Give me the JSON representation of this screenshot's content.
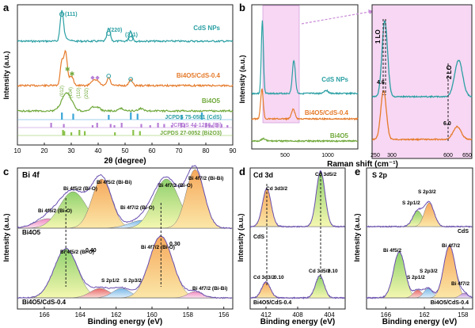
{
  "panels": {
    "a": {
      "letter": "a",
      "xlabel": "2θ (degree)",
      "ylabel": "Intensity (a.u.)",
      "xticks": [
        "10",
        "20",
        "30",
        "40",
        "50",
        "60",
        "70",
        "80",
        "90"
      ],
      "series_labels": [
        "CdS NPs",
        "Bi4O5/CdS-0.4",
        "Bi4O5"
      ],
      "refs": [
        "JCPDS 75-0581 (CdS)",
        "JCPDS 44-1246 (Bi)",
        "JCPDS 27-0052 (Bi2O3)"
      ],
      "peak_labels": [
        "(111)",
        "(220)",
        "(311)"
      ],
      "bi_labels": [
        "(012)",
        "(104)",
        "(110)",
        "(202)"
      ],
      "markers": {
        "cds": "○",
        "bi": "◆",
        "bi2o3": "✱"
      }
    },
    "b": {
      "letter": "b",
      "xlabel": "Raman shift (cm⁻¹)",
      "ylabel": "Intensity (a.u.)",
      "xticks_left": [
        "500",
        "1000"
      ],
      "xticks_right": [
        "250",
        "300",
        "600",
        "650"
      ],
      "series_labels": [
        "CdS NPs",
        "Bi4O5/CdS-0.4",
        "Bi4O5"
      ],
      "peak_labels": [
        "1 LO",
        "2 LO"
      ],
      "shift_labels": [
        "4.6",
        "6.0"
      ]
    },
    "c": {
      "letter": "c",
      "title": "Bi 4f",
      "xlabel": "Binding energy (eV)",
      "ylabel": "Intensity (a.u.)",
      "xticks": [
        "166",
        "164",
        "162",
        "160",
        "158",
        "156"
      ],
      "sample_top": "Bi4O5",
      "sample_bottom": "Bi4O5/CdS-0.4",
      "labels_top": [
        "Bi 4f5/2 (Bi-O)",
        "Bi 4f5/2 (Bi-O)",
        "Bi 4f5/2 (Bi-Bi)",
        "Bi 4f7/2 (Bi-O)",
        "Bi 4f7/2 (Bi-O)",
        "Bi 4f7/2 (Bi-Bi)"
      ],
      "labels_bottom": [
        "Bi 4f5/2 (Bi-O)",
        "S 2p1/2",
        "S 2p3/2",
        "Bi 4f7/2 (Bi-O)",
        "Bi 4f7/2 (Bi-Bi)"
      ],
      "shift_labels": [
        "0.40",
        "0.30"
      ]
    },
    "d": {
      "letter": "d",
      "title": "Cd 3d",
      "xlabel": "Binding energy (eV)",
      "ylabel": "Intensity (a.u.)",
      "xticks": [
        "412",
        "408",
        "404"
      ],
      "sample_top": "CdS",
      "sample_bottom": "Bi4O5/CdS-0.4",
      "labels": [
        "Cd 3d3/2",
        "Cd 3d5/2"
      ],
      "shift_labels": [
        "0.10",
        "0.10"
      ]
    },
    "e": {
      "letter": "e",
      "title": "S 2p",
      "xlabel": "Binding energy (eV)",
      "ylabel": "Intensity (a.u.)",
      "xticks": [
        "166",
        "162",
        "158"
      ],
      "sample_top": "CdS",
      "sample_bottom": "Bi4O5/CdS-0.4",
      "labels": [
        "S 2p1/2",
        "S 2p3/2",
        "Bi 4f5/2",
        "S 2p1/2",
        "S 2p3/2",
        "Bi 4f7/2",
        "Bi 4f7/2"
      ]
    }
  },
  "colors": {
    "cds": "#2a9fa3",
    "composite": "#e57a2a",
    "bio": "#6fa83a",
    "jcpds_cds": "#3aa6d8",
    "jcpds_bi": "#b77fd6",
    "jcpds_bi2o3": "#8ac24a",
    "highlight": "#f7d7f3",
    "highlight_edge": "#c88ad8"
  },
  "chart_data": [
    {
      "type": "line",
      "panel": "a",
      "title": "",
      "xlabel": "2θ (degree)",
      "ylabel": "Intensity (a.u.)",
      "xlim": [
        10,
        90
      ],
      "series": [
        {
          "name": "CdS NPs",
          "peaks_2theta": [
            26.5,
            43.9,
            52.1
          ]
        },
        {
          "name": "Bi4O5/CdS-0.4",
          "peaks_2theta": [
            26.5,
            27.9,
            30.0,
            38.0,
            39.8,
            43.9,
            52.1
          ]
        },
        {
          "name": "Bi4O5",
          "peaks_2theta": [
            27.2,
            28.5,
            30.2,
            38.0,
            39.8,
            48.7,
            56.0
          ]
        }
      ],
      "references": [
        {
          "name": "JCPDS 75-0581 (CdS)",
          "positions": [
            26.5,
            30.7,
            43.9,
            52.1,
            54.6,
            71.0,
            78.5
          ]
        },
        {
          "name": "JCPDS 44-1246 (Bi)",
          "positions": [
            22.5,
            27.2,
            37.9,
            39.6,
            44.6,
            46.0,
            48.7,
            56.0,
            59.3,
            62.2,
            64.5,
            67.4,
            70.8,
            72.0,
            76.0,
            80.0,
            81.3,
            82.2,
            84.2,
            85.8,
            88.0
          ]
        },
        {
          "name": "JCPDS 27-0052 (Bi2O3)",
          "positions": [
            26.9,
            27.4,
            30.0,
            33.0,
            35.0,
            46.2,
            53.0,
            55.5
          ]
        }
      ]
    },
    {
      "type": "line",
      "panel": "b",
      "title": "",
      "xlabel": "Raman shift (cm⁻¹)",
      "ylabel": "Intensity (a.u.)",
      "xlim": [
        200,
        1200
      ],
      "zoom_xlim": [
        250,
        650
      ],
      "series": [
        {
          "name": "CdS NPs",
          "peaks": [
            300.6,
            597
          ]
        },
        {
          "name": "Bi4O5/CdS-0.4",
          "peaks": [
            296,
            591
          ]
        },
        {
          "name": "Bi4O5",
          "peaks": []
        }
      ],
      "shifts": {
        "1 LO": 4.6,
        "2 LO": 6.0
      }
    },
    {
      "type": "line",
      "panel": "c",
      "title": "Bi 4f",
      "xlabel": "Binding energy (eV)",
      "ylabel": "Intensity (a.u.)",
      "xlim": [
        167.5,
        155.5
      ],
      "series": [
        {
          "name": "Bi4O5",
          "components": [
            165.8,
            164.4,
            162.8,
            160.5,
            159.2,
            157.6
          ]
        },
        {
          "name": "Bi4O5/CdS-0.4",
          "components": [
            164.8,
            162.9,
            161.7,
            159.5,
            157.6
          ]
        }
      ],
      "shifts": [
        0.4,
        0.3
      ]
    },
    {
      "type": "line",
      "panel": "d",
      "title": "Cd 3d",
      "xlabel": "Binding energy (eV)",
      "ylabel": "Intensity (a.u.)",
      "xlim": [
        414,
        402
      ],
      "series": [
        {
          "name": "CdS",
          "peaks": [
            411.9,
            405.1
          ]
        },
        {
          "name": "Bi4O5/CdS-0.4",
          "peaks": [
            412.0,
            405.2
          ]
        }
      ],
      "shifts": [
        0.1,
        0.1
      ]
    },
    {
      "type": "line",
      "panel": "e",
      "title": "S 2p",
      "xlabel": "Binding energy (eV)",
      "ylabel": "Intensity (a.u.)",
      "xlim": [
        168,
        157
      ],
      "series": [
        {
          "name": "CdS",
          "peaks": [
            162.7,
            161.5
          ]
        },
        {
          "name": "Bi4O5/CdS-0.4",
          "peaks": [
            164.6,
            162.7,
            161.6,
            159.4,
            157.9
          ]
        }
      ]
    }
  ]
}
